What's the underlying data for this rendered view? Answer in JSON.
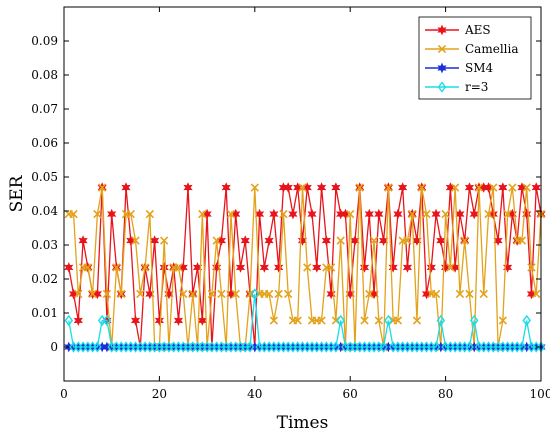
{
  "chart_data": {
    "type": "line",
    "xlabel": "Times",
    "ylabel": "SER",
    "xlim": [
      0,
      100
    ],
    "ylim": [
      -0.01,
      0.1
    ],
    "x_ticks": [
      0,
      20,
      40,
      60,
      80,
      100
    ],
    "y_ticks": [
      0,
      0.01,
      0.02,
      0.03,
      0.04,
      0.05,
      0.06,
      0.07,
      0.08,
      0.09
    ],
    "x_tick_labels": [
      "0",
      "20",
      "40",
      "60",
      "80",
      "100"
    ],
    "y_tick_labels": [
      "0",
      "0.01",
      "0.02",
      "0.03",
      "0.04",
      "0.05",
      "0.06",
      "0.07",
      "0.08",
      "0.09"
    ],
    "grid": false,
    "legend_position": "top-right",
    "x": [
      1,
      2,
      3,
      4,
      5,
      6,
      7,
      8,
      9,
      10,
      11,
      12,
      13,
      14,
      15,
      16,
      17,
      18,
      19,
      20,
      21,
      22,
      23,
      24,
      25,
      26,
      27,
      28,
      29,
      30,
      31,
      32,
      33,
      34,
      35,
      36,
      37,
      38,
      39,
      40,
      41,
      42,
      43,
      44,
      45,
      46,
      47,
      48,
      49,
      50,
      51,
      52,
      53,
      54,
      55,
      56,
      57,
      58,
      59,
      60,
      61,
      62,
      63,
      64,
      65,
      66,
      67,
      68,
      69,
      70,
      71,
      72,
      73,
      74,
      75,
      76,
      77,
      78,
      79,
      80,
      81,
      82,
      83,
      84,
      85,
      86,
      87,
      88,
      89,
      90,
      91,
      92,
      93,
      94,
      95,
      96,
      97,
      98,
      99,
      100
    ],
    "series": [
      {
        "name": "AES",
        "color": "#e8141c",
        "marker": "star",
        "values": [
          0.0234,
          0.0156,
          0.0078,
          0.0313,
          0.0234,
          0.0156,
          0.0156,
          0.0469,
          0.0078,
          0.0391,
          0.0234,
          0.0156,
          0.0469,
          0.0313,
          0.0078,
          0.0,
          0.0234,
          0.0156,
          0.0313,
          0.0078,
          0.0234,
          0.0156,
          0.0234,
          0.0078,
          0.0234,
          0.0469,
          0.0156,
          0.0234,
          0.0078,
          0.0391,
          0.0,
          0.0234,
          0.0313,
          0.0469,
          0.0156,
          0.0391,
          0.0234,
          0.0313,
          0.0156,
          0.0,
          0.0391,
          0.0234,
          0.0313,
          0.0391,
          0.0234,
          0.0469,
          0.0469,
          0.0391,
          0.0469,
          0.0313,
          0.0469,
          0.0391,
          0.0234,
          0.0469,
          0.0313,
          0.0156,
          0.0469,
          0.0391,
          0.0391,
          0.0156,
          0.0313,
          0.0469,
          0.0234,
          0.0391,
          0.0156,
          0.0391,
          0.0313,
          0.0469,
          0.0234,
          0.0391,
          0.0469,
          0.0234,
          0.0391,
          0.0313,
          0.0469,
          0.0156,
          0.0234,
          0.0391,
          0.0313,
          0.0234,
          0.0469,
          0.0234,
          0.0391,
          0.0313,
          0.0469,
          0.0391,
          0.0469,
          0.0469,
          0.0469,
          0.0391,
          0.0313,
          0.0469,
          0.0234,
          0.0391,
          0.0313,
          0.0469,
          0.0391,
          0.0156,
          0.0469,
          0.0391
        ]
      },
      {
        "name": "Camellia",
        "color": "#e3a21a",
        "marker": "x",
        "values": [
          0.0391,
          0.0391,
          0.0156,
          0.0234,
          0.0234,
          0.0156,
          0.0391,
          0.0469,
          0.0156,
          0.0,
          0.0234,
          0.0156,
          0.0391,
          0.0391,
          0.0313,
          0.0156,
          0.0234,
          0.0391,
          0.0,
          0.0,
          0.0313,
          0.0,
          0.0234,
          0.0234,
          0.0156,
          0.0,
          0.0156,
          0.0,
          0.0391,
          0.0,
          0.0156,
          0.0313,
          0.0156,
          0.0,
          0.0391,
          0.0156,
          0.0,
          0.0,
          0.0156,
          0.0469,
          0.0156,
          0.0156,
          0.0156,
          0.0078,
          0.0156,
          0.0391,
          0.0156,
          0.0078,
          0.0078,
          0.0469,
          0.0234,
          0.0078,
          0.0078,
          0.0078,
          0.0234,
          0.0234,
          0.0078,
          0.0313,
          0.0,
          0.0391,
          0.0,
          0.0469,
          0.0078,
          0.0156,
          0.0313,
          0.0078,
          0.0,
          0.0469,
          0.0078,
          0.0078,
          0.0313,
          0.0313,
          0.0391,
          0.0078,
          0.0469,
          0.0391,
          0.0156,
          0.0156,
          0.0,
          0.0391,
          0.0234,
          0.0469,
          0.0156,
          0.0313,
          0.0156,
          0.0,
          0.0469,
          0.0156,
          0.0391,
          0.0469,
          0.0,
          0.0078,
          0.0391,
          0.0469,
          0.0313,
          0.0313,
          0.0469,
          0.0234,
          0.0156,
          0.0391
        ]
      },
      {
        "name": "SM4",
        "color": "#1c2fd6",
        "marker": "star",
        "values": [
          0,
          0,
          0,
          0,
          0,
          0,
          0,
          0,
          0,
          0,
          0,
          0,
          0,
          0,
          0,
          0,
          0,
          0,
          0,
          0,
          0,
          0,
          0,
          0,
          0,
          0,
          0,
          0,
          0,
          0,
          0,
          0,
          0,
          0,
          0,
          0,
          0,
          0,
          0,
          0,
          0,
          0,
          0,
          0,
          0,
          0,
          0,
          0,
          0,
          0,
          0,
          0,
          0,
          0,
          0,
          0,
          0,
          0,
          0,
          0,
          0,
          0,
          0,
          0,
          0,
          0,
          0,
          0,
          0,
          0,
          0,
          0,
          0,
          0,
          0,
          0,
          0,
          0,
          0,
          0,
          0,
          0,
          0,
          0,
          0,
          0,
          0,
          0,
          0,
          0,
          0,
          0,
          0,
          0,
          0,
          0,
          0,
          0,
          0,
          0
        ]
      },
      {
        "name": "r=3",
        "color": "#19dde8",
        "marker": "diamond",
        "values": [
          0.0078,
          0,
          0,
          0,
          0,
          0,
          0,
          0.0078,
          0.0078,
          0,
          0,
          0,
          0,
          0,
          0,
          0,
          0,
          0,
          0,
          0,
          0,
          0,
          0,
          0,
          0,
          0,
          0,
          0,
          0,
          0,
          0,
          0,
          0,
          0,
          0,
          0,
          0,
          0,
          0,
          0.0156,
          0,
          0,
          0,
          0,
          0,
          0,
          0,
          0,
          0,
          0,
          0,
          0,
          0,
          0,
          0,
          0,
          0,
          0.0078,
          0,
          0,
          0,
          0,
          0,
          0,
          0,
          0,
          0,
          0.0078,
          0,
          0,
          0,
          0,
          0,
          0,
          0,
          0,
          0,
          0,
          0.0078,
          0,
          0,
          0,
          0,
          0,
          0,
          0.0078,
          0,
          0,
          0,
          0,
          0,
          0,
          0,
          0,
          0,
          0,
          0.0078,
          0,
          0,
          0
        ]
      }
    ]
  }
}
